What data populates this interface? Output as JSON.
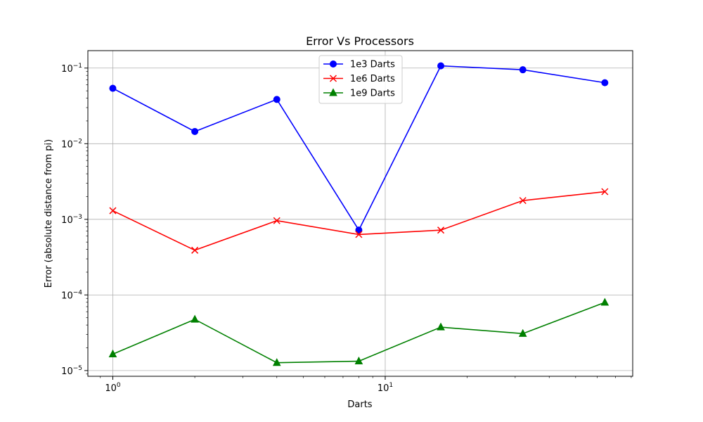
{
  "chart_data": {
    "type": "line",
    "title": "Error Vs Processors",
    "xlabel": "Darts",
    "ylabel": "Error (absolute distance from pi)",
    "xscale": "log",
    "yscale": "log",
    "xlim": [
      0.81,
      81
    ],
    "ylim": [
      8.4e-06,
      0.17
    ],
    "grid": true,
    "legend_position": "top-center",
    "x_ticks": [
      {
        "value": 1,
        "base": "10",
        "exp": "0"
      },
      {
        "value": 10,
        "base": "10",
        "exp": "1"
      }
    ],
    "y_ticks": [
      {
        "value": 1e-05,
        "base": "10",
        "exp": "−5"
      },
      {
        "value": 0.0001,
        "base": "10",
        "exp": "−4"
      },
      {
        "value": 0.001,
        "base": "10",
        "exp": "−3"
      },
      {
        "value": 0.01,
        "base": "10",
        "exp": "−2"
      },
      {
        "value": 0.1,
        "base": "10",
        "exp": "−1"
      }
    ],
    "x": [
      1,
      2,
      4,
      8,
      16,
      32,
      64
    ],
    "series": [
      {
        "name": "1e3 Darts",
        "color": "#0000ff",
        "marker": "circle",
        "values": [
          0.054,
          0.0145,
          0.0385,
          0.00072,
          0.107,
          0.095,
          0.064
        ]
      },
      {
        "name": "1e6 Darts",
        "color": "#ff0000",
        "marker": "x",
        "values": [
          0.0013,
          0.00039,
          0.00096,
          0.00063,
          0.00072,
          0.00177,
          0.00232
        ]
      },
      {
        "name": "1e9 Darts",
        "color": "#008000",
        "marker": "triangle",
        "values": [
          1.65e-05,
          4.75e-05,
          1.27e-05,
          1.33e-05,
          3.75e-05,
          3.08e-05,
          7.95e-05
        ]
      }
    ]
  }
}
